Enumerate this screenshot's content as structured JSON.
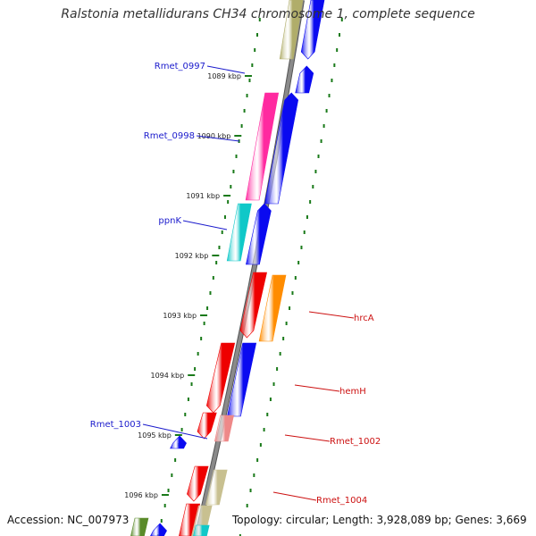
{
  "title": "Ralstonia metallidurans CH34 chromosome 1, complete sequence",
  "footer": {
    "accession": "Accession: NC_007973",
    "topology": "Topology: circular; Length: 3,928,089 bp; Genes: 3,669"
  },
  "colors": {
    "backbone": "#8a8a8a",
    "forward_label": "#1a1acc",
    "reverse_label": "#cc1010",
    "tick": "#1a7a1a"
  },
  "kbp_labels": [
    "1089 kbp",
    "1090 kbp",
    "1091 kbp",
    "1092 kbp",
    "1093 kbp",
    "1094 kbp",
    "1095 kbp",
    "1096 kbp"
  ],
  "gene_labels": {
    "left": [
      "Rmet_0997",
      "Rmet_0998",
      "ppnK",
      "Rmet_1003"
    ],
    "right": [
      "hrcA",
      "hemH",
      "Rmet_1002",
      "Rmet_1004"
    ]
  }
}
